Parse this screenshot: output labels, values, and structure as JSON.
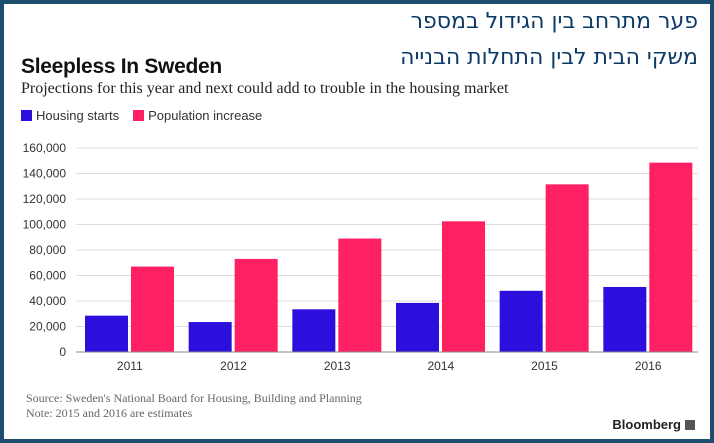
{
  "overlay": {
    "hebrew_line1": "פער מתרחב בין הגידול במספר",
    "hebrew_line2": "משקי הבית לבין התחלות הבנייה"
  },
  "footer": {
    "source": "Source: Sweden's National Board for Housing, Building and Planning",
    "note": "Note: 2015 and 2016 are estimates",
    "brand": "Bloomberg"
  },
  "colors": {
    "housing": "#2c0fdc",
    "population": "#ff1f63",
    "frame": "#1d4e6e",
    "hebrew_text": "#0c3a66"
  },
  "chart_data": {
    "type": "bar",
    "title": "Sleepless In Sweden",
    "subtitle": "Projections for this year and next could add to trouble in the housing market",
    "xlabel": "",
    "ylabel": "",
    "categories": [
      "2011",
      "2012",
      "2013",
      "2014",
      "2015",
      "2016"
    ],
    "series": [
      {
        "name": "Housing starts",
        "values": [
          28500,
          23500,
          33500,
          38500,
          48000,
          51000
        ]
      },
      {
        "name": "Population increase",
        "values": [
          67000,
          73000,
          89000,
          102500,
          131500,
          148500
        ]
      }
    ],
    "ylim": [
      0,
      160000
    ],
    "yticks": [
      0,
      20000,
      40000,
      60000,
      80000,
      100000,
      120000,
      140000,
      160000
    ],
    "ytick_labels": [
      "0",
      "20,000",
      "40,000",
      "60,000",
      "80,000",
      "100,000",
      "120,000",
      "140,000",
      "160,000"
    ],
    "grid": true,
    "legend_position": "top-left"
  }
}
